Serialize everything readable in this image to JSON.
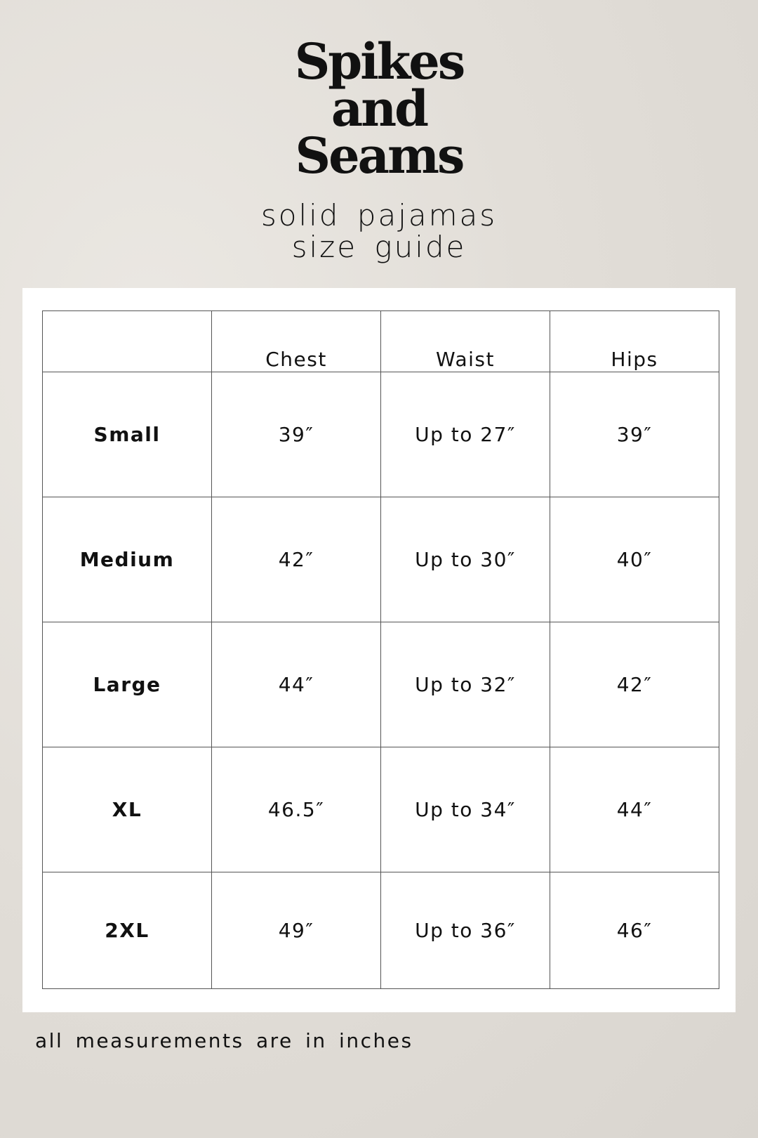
{
  "brand": {
    "lines": [
      "Spikes",
      "and",
      "Seams"
    ]
  },
  "subtitle": {
    "line1": "solid pajamas",
    "line2": "size guide"
  },
  "table": {
    "headers": [
      "",
      "Chest",
      "Waist",
      "Hips"
    ],
    "rows": [
      {
        "size": "Small",
        "chest": "39″",
        "waist": "Up to 27″",
        "hips": "39″"
      },
      {
        "size": "Medium",
        "chest": "42″",
        "waist": "Up to 30″",
        "hips": "40″"
      },
      {
        "size": "Large",
        "chest": "44″",
        "waist": "Up to 32″",
        "hips": "42″"
      },
      {
        "size": "XL",
        "chest": "46.5″",
        "waist": "Up to 34″",
        "hips": "44″"
      },
      {
        "size": "2XL",
        "chest": "49″",
        "waist": "Up to 36″",
        "hips": "46″"
      }
    ]
  },
  "footer": {
    "note": "all measurements are in inches"
  }
}
